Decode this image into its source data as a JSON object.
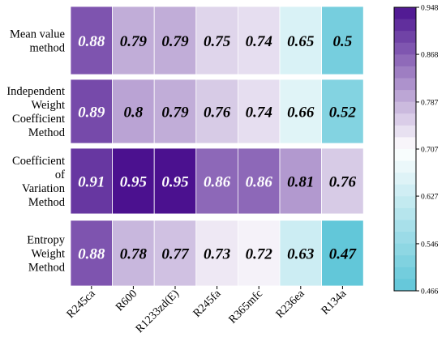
{
  "chart_data": {
    "type": "heatmap",
    "title": "",
    "xlabel": "",
    "ylabel": "",
    "rows": [
      [
        "Mean value",
        "method"
      ],
      [
        "Independent",
        "Weight",
        "Coefficient",
        "Method"
      ],
      [
        "Coefficient",
        "of",
        "Variation",
        "Method"
      ],
      [
        "Entropy",
        "Weight",
        "Method"
      ]
    ],
    "columns": [
      "R245ca",
      "R600",
      "R1233zd(E)",
      "R245fa",
      "R365mfc",
      "R236ea",
      "R134a"
    ],
    "values": [
      [
        0.88,
        0.79,
        0.79,
        0.75,
        0.74,
        0.65,
        0.5
      ],
      [
        0.89,
        0.8,
        0.79,
        0.76,
        0.74,
        0.66,
        0.52
      ],
      [
        0.91,
        0.95,
        0.95,
        0.86,
        0.86,
        0.81,
        0.76
      ],
      [
        0.88,
        0.78,
        0.77,
        0.73,
        0.72,
        0.63,
        0.47
      ]
    ],
    "value_labels": [
      [
        "0.88",
        "0.79",
        "0.79",
        "0.75",
        "0.74",
        "0.65",
        "0.5"
      ],
      [
        "0.89",
        "0.8",
        "0.79",
        "0.76",
        "0.74",
        "0.66",
        "0.52"
      ],
      [
        "0.91",
        "0.95",
        "0.95",
        "0.86",
        "0.86",
        "0.81",
        "0.76"
      ],
      [
        "0.88",
        "0.78",
        "0.77",
        "0.73",
        "0.72",
        "0.63",
        "0.47"
      ]
    ],
    "colorbar": {
      "min": 0.466,
      "max": 0.948,
      "ticks": [
        "0.948",
        "0.868",
        "0.787",
        "0.707",
        "0.627",
        "0.546",
        "0.466"
      ],
      "tick_values": [
        0.948,
        0.868,
        0.787,
        0.707,
        0.627,
        0.546,
        0.466
      ],
      "colors": [
        "#5fc6d8",
        "#ffffff",
        "#4b118f"
      ]
    }
  }
}
